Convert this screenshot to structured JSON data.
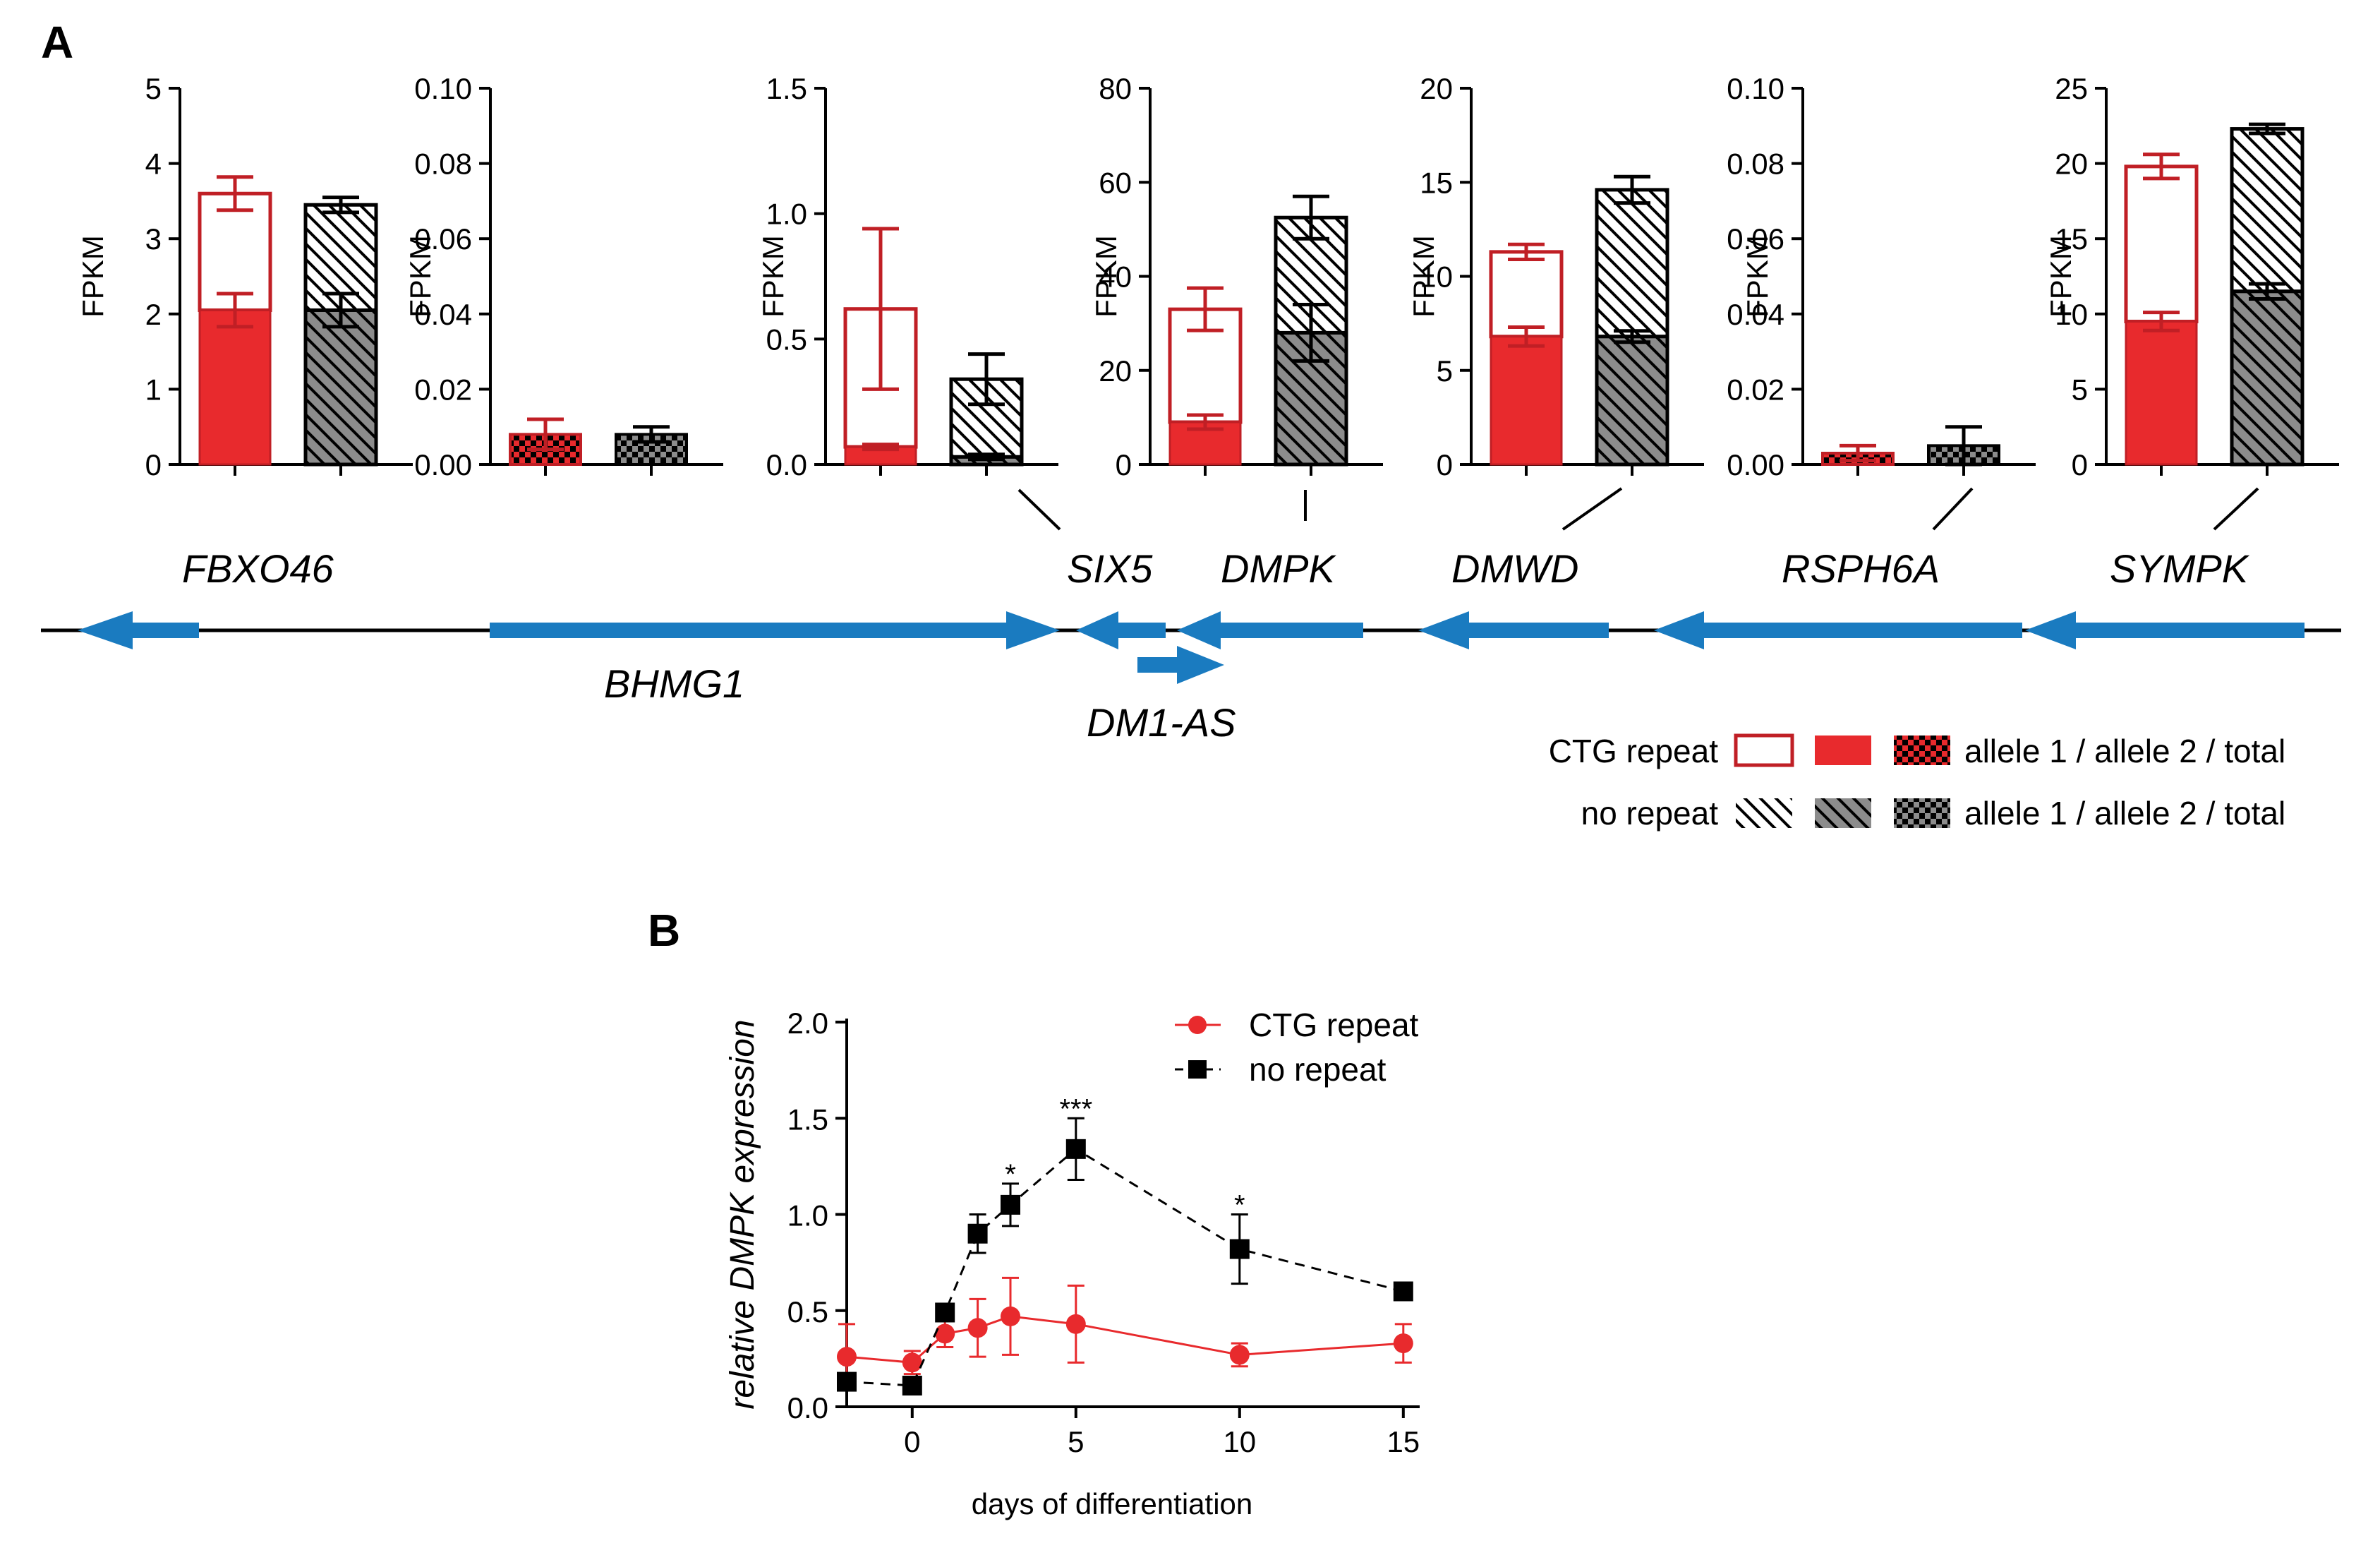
{
  "panels": {
    "a": "A",
    "b": "B"
  },
  "colors": {
    "red": "#e82a2d",
    "dark_red": "#c01f25",
    "gray": "#8c8c8c",
    "black": "#000000",
    "gene_blue": "#1a7bc0"
  },
  "chart_data": [
    {
      "panel": "A",
      "type": "bar",
      "ylabel": "FPKM",
      "series_legend": {
        "rows": [
          {
            "label": "CTG repeat",
            "swatches": [
              "allele 1 (open red)",
              "allele 2 (solid red)",
              "total (red checker)"
            ],
            "suffix": "allele 1 / allele 2 / total"
          },
          {
            "label": "no repeat",
            "swatches": [
              "allele 1 (hatched)",
              "allele 2 (gray hatched)",
              "total (gray checker)"
            ],
            "suffix": "allele 1 / allele 2 / total"
          }
        ]
      },
      "genes_axis": [
        "FBXO46",
        "BHMG1",
        "SIX5",
        "DM1-AS",
        "DMPK",
        "DMWD",
        "RSPH6A",
        "SYMPK"
      ],
      "plots": [
        {
          "gene": "FBXO46",
          "ylim": [
            0,
            5
          ],
          "ticks": [
            "0",
            "1",
            "2",
            "3",
            "4",
            "5"
          ],
          "ctg": {
            "mode": "stacked",
            "allele2": 2.05,
            "allele2_err": 0.22,
            "total": 3.6,
            "total_err": 0.22
          },
          "norep": {
            "mode": "stacked",
            "allele2": 2.05,
            "allele2_err": 0.22,
            "total": 3.45,
            "total_err": 0.1
          }
        },
        {
          "gene": "BHMG1",
          "ylim": [
            0,
            0.1
          ],
          "ticks": [
            "0.00",
            "0.02",
            "0.04",
            "0.06",
            "0.08",
            "0.10"
          ],
          "ctg": {
            "mode": "total",
            "total": 0.008,
            "total_err": 0.004
          },
          "norep": {
            "mode": "total",
            "total": 0.008,
            "total_err": 0.002
          }
        },
        {
          "gene": "SIX5",
          "ylim": [
            0,
            1.5
          ],
          "ticks": [
            "0.0",
            "0.5",
            "1.0",
            "1.5"
          ],
          "ctg": {
            "mode": "stacked",
            "allele2": 0.07,
            "allele2_err": 0.01,
            "total": 0.62,
            "total_err": 0.32
          },
          "norep": {
            "mode": "stacked",
            "allele2": 0.03,
            "allele2_err": 0.01,
            "total": 0.34,
            "total_err": 0.1
          }
        },
        {
          "gene": "DMPK",
          "ylim": [
            0,
            80
          ],
          "ticks": [
            "0",
            "20",
            "40",
            "60",
            "80"
          ],
          "ctg": {
            "mode": "stacked",
            "allele2": 9,
            "allele2_err": 1.5,
            "total": 33,
            "total_err": 4.5
          },
          "norep": {
            "mode": "stacked",
            "allele2": 28,
            "allele2_err": 6,
            "total": 52.5,
            "total_err": 4.5
          }
        },
        {
          "gene": "DMWD",
          "ylim": [
            0,
            20
          ],
          "ticks": [
            "0",
            "5",
            "10",
            "15",
            "20"
          ],
          "ctg": {
            "mode": "stacked",
            "allele2": 6.8,
            "allele2_err": 0.5,
            "total": 11.3,
            "total_err": 0.4
          },
          "norep": {
            "mode": "stacked",
            "allele2": 6.8,
            "allele2_err": 0.3,
            "total": 14.6,
            "total_err": 0.7
          }
        },
        {
          "gene": "RSPH6A",
          "ylim": [
            0,
            0.1
          ],
          "ticks": [
            "0.00",
            "0.02",
            "0.04",
            "0.06",
            "0.08",
            "0.10"
          ],
          "ctg": {
            "mode": "total",
            "total": 0.003,
            "total_err": 0.002
          },
          "norep": {
            "mode": "total",
            "total": 0.005,
            "total_err": 0.005
          }
        },
        {
          "gene": "SYMPK",
          "ylim": [
            0,
            25
          ],
          "ticks": [
            "0",
            "5",
            "10",
            "15",
            "20",
            "25"
          ],
          "ctg": {
            "mode": "stacked",
            "allele2": 9.5,
            "allele2_err": 0.6,
            "total": 19.8,
            "total_err": 0.8
          },
          "norep": {
            "mode": "stacked",
            "allele2": 11.5,
            "allele2_err": 0.5,
            "total": 22.3,
            "total_err": 0.3
          }
        }
      ]
    },
    {
      "panel": "B",
      "type": "line",
      "xlabel": "days of differentiation",
      "ylabel": "relative DMPK expression",
      "xlim": [
        -2,
        15.5
      ],
      "ylim": [
        0,
        2
      ],
      "xticks": [
        "0",
        "5",
        "10",
        "15"
      ],
      "yticks": [
        "0.0",
        "0.5",
        "1.0",
        "1.5",
        "2.0"
      ],
      "series": [
        {
          "name": "CTG repeat",
          "x": [
            -2,
            0,
            1,
            2,
            3,
            5,
            10,
            15
          ],
          "y": [
            0.26,
            0.23,
            0.38,
            0.41,
            0.47,
            0.43,
            0.27,
            0.33
          ],
          "err": [
            0.17,
            0.06,
            0.07,
            0.15,
            0.2,
            0.2,
            0.06,
            0.1
          ]
        },
        {
          "name": "no repeat",
          "x": [
            -2,
            0,
            1,
            2,
            3,
            5,
            10,
            15
          ],
          "y": [
            0.13,
            0.11,
            0.49,
            0.9,
            1.05,
            1.34,
            0.82,
            0.6
          ],
          "err": [
            0.02,
            0.02,
            0.03,
            0.1,
            0.11,
            0.16,
            0.18,
            0.02
          ]
        }
      ],
      "annotations": [
        {
          "x": 3,
          "y": 1.16,
          "text": "*"
        },
        {
          "x": 5,
          "y": 1.5,
          "text": "***"
        },
        {
          "x": 10,
          "y": 1.0,
          "text": "*"
        }
      ]
    }
  ]
}
